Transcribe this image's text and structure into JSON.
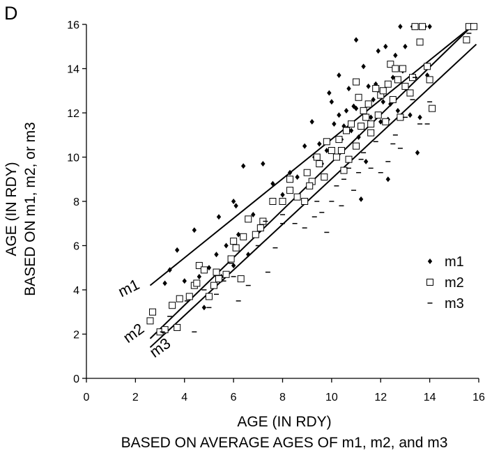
{
  "panel_label": "D",
  "chart_data": {
    "type": "scatter",
    "title": "",
    "xlabel": [
      "AGE (IN RDY)",
      "BASED ON AVERAGE AGES OF m1, m2, and m3"
    ],
    "ylabel": [
      "AGE (IN RDY)",
      "BASED ON m1, m2, or m3"
    ],
    "xlim": [
      0,
      16
    ],
    "ylim": [
      0,
      16
    ],
    "xticks": [
      0,
      2,
      4,
      6,
      8,
      10,
      12,
      14,
      16
    ],
    "yticks": [
      0,
      2,
      4,
      6,
      8,
      10,
      12,
      14,
      16
    ],
    "grid": false,
    "legend_position": "right",
    "series": [
      {
        "name": "m1",
        "marker": "diamond-filled",
        "points": [
          [
            3.4,
            4.9
          ],
          [
            3.2,
            4.3
          ],
          [
            3.7,
            5.8
          ],
          [
            4.0,
            4.4
          ],
          [
            4.4,
            6.7
          ],
          [
            4.6,
            4.6
          ],
          [
            4.8,
            3.2
          ],
          [
            5.0,
            5.0
          ],
          [
            5.3,
            5.6
          ],
          [
            5.4,
            7.3
          ],
          [
            5.5,
            4.6
          ],
          [
            5.7,
            6.0
          ],
          [
            6.0,
            8.0
          ],
          [
            6.1,
            7.8
          ],
          [
            6.2,
            6.5
          ],
          [
            6.4,
            9.6
          ],
          [
            6.0,
            5.1
          ],
          [
            6.6,
            5.6
          ],
          [
            6.8,
            7.4
          ],
          [
            7.2,
            9.7
          ],
          [
            7.6,
            8.8
          ],
          [
            8.0,
            8.3
          ],
          [
            8.3,
            9.3
          ],
          [
            8.6,
            9.1
          ],
          [
            8.9,
            10.5
          ],
          [
            9.2,
            11.6
          ],
          [
            9.3,
            10.0
          ],
          [
            9.5,
            10.6
          ],
          [
            9.6,
            9.7
          ],
          [
            9.8,
            10.3
          ],
          [
            9.9,
            12.9
          ],
          [
            10.0,
            12.5
          ],
          [
            10.1,
            11.5
          ],
          [
            10.3,
            13.7
          ],
          [
            10.4,
            10.8
          ],
          [
            10.5,
            11.4
          ],
          [
            10.6,
            12.1
          ],
          [
            10.8,
            11.2
          ],
          [
            10.9,
            12.3
          ],
          [
            11.0,
            12.2
          ],
          [
            11.1,
            10.9
          ],
          [
            11.2,
            8.1
          ],
          [
            11.3,
            14.1
          ],
          [
            11.5,
            13.2
          ],
          [
            11.6,
            11.8
          ],
          [
            11.7,
            12.6
          ],
          [
            11.8,
            13.3
          ],
          [
            11.9,
            14.8
          ],
          [
            12.0,
            11.6
          ],
          [
            12.1,
            12.5
          ],
          [
            12.2,
            15.0
          ],
          [
            12.4,
            12.4
          ],
          [
            12.5,
            13.6
          ],
          [
            12.6,
            14.6
          ],
          [
            12.8,
            15.9
          ],
          [
            12.9,
            13.9
          ],
          [
            13.0,
            15.0
          ],
          [
            13.2,
            11.9
          ],
          [
            13.4,
            13.6
          ],
          [
            13.5,
            10.2
          ],
          [
            13.6,
            11.8
          ],
          [
            13.8,
            15.9
          ],
          [
            14.0,
            15.9
          ],
          [
            13.9,
            13.7
          ],
          [
            12.3,
            9.0
          ],
          [
            11.4,
            9.8
          ],
          [
            10.7,
            13.1
          ],
          [
            11.0,
            15.3
          ],
          [
            12.3,
            11.7
          ],
          [
            13.3,
            15.9
          ],
          [
            10.3,
            11.9
          ],
          [
            12.7,
            12.1
          ]
        ]
      },
      {
        "name": "m2",
        "marker": "square-open",
        "points": [
          [
            2.7,
            3.0
          ],
          [
            2.6,
            2.6
          ],
          [
            3.0,
            2.1
          ],
          [
            3.2,
            2.2
          ],
          [
            3.5,
            3.3
          ],
          [
            3.7,
            2.3
          ],
          [
            3.8,
            3.6
          ],
          [
            4.2,
            3.7
          ],
          [
            4.4,
            4.2
          ],
          [
            4.6,
            5.1
          ],
          [
            4.8,
            4.9
          ],
          [
            5.0,
            3.7
          ],
          [
            5.2,
            4.2
          ],
          [
            5.4,
            4.5
          ],
          [
            5.7,
            4.7
          ],
          [
            5.9,
            5.4
          ],
          [
            6.0,
            6.2
          ],
          [
            6.1,
            5.9
          ],
          [
            6.3,
            4.5
          ],
          [
            6.4,
            6.4
          ],
          [
            6.6,
            7.2
          ],
          [
            6.9,
            6.5
          ],
          [
            7.2,
            7.1
          ],
          [
            7.6,
            8.0
          ],
          [
            8.0,
            8.0
          ],
          [
            8.3,
            8.5
          ],
          [
            8.6,
            8.2
          ],
          [
            8.9,
            8.0
          ],
          [
            9.0,
            9.3
          ],
          [
            9.2,
            8.9
          ],
          [
            9.4,
            10.0
          ],
          [
            9.5,
            9.7
          ],
          [
            9.7,
            9.1
          ],
          [
            9.8,
            10.7
          ],
          [
            10.0,
            10.3
          ],
          [
            10.2,
            10.0
          ],
          [
            10.3,
            10.8
          ],
          [
            10.4,
            10.3
          ],
          [
            10.6,
            11.2
          ],
          [
            10.7,
            9.9
          ],
          [
            10.8,
            11.5
          ],
          [
            11.0,
            10.5
          ],
          [
            11.1,
            12.7
          ],
          [
            11.2,
            11.4
          ],
          [
            11.3,
            12.1
          ],
          [
            11.4,
            11.8
          ],
          [
            11.5,
            12.4
          ],
          [
            11.6,
            11.1
          ],
          [
            11.8,
            13.1
          ],
          [
            11.9,
            11.9
          ],
          [
            12.0,
            12.8
          ],
          [
            12.2,
            11.6
          ],
          [
            12.3,
            13.3
          ],
          [
            12.4,
            14.2
          ],
          [
            12.5,
            12.6
          ],
          [
            12.7,
            13.5
          ],
          [
            12.8,
            11.8
          ],
          [
            12.9,
            14.0
          ],
          [
            13.0,
            13.2
          ],
          [
            13.2,
            12.9
          ],
          [
            13.4,
            15.9
          ],
          [
            13.6,
            15.2
          ],
          [
            13.7,
            15.9
          ],
          [
            13.9,
            14.1
          ],
          [
            14.0,
            13.5
          ],
          [
            14.1,
            12.2
          ],
          [
            15.5,
            15.3
          ],
          [
            15.6,
            15.9
          ],
          [
            15.8,
            15.9
          ],
          [
            10.5,
            9.4
          ],
          [
            11.0,
            13.4
          ],
          [
            12.1,
            13.0
          ],
          [
            9.1,
            8.7
          ],
          [
            8.3,
            9.0
          ],
          [
            7.1,
            6.8
          ],
          [
            5.3,
            4.8
          ],
          [
            4.5,
            4.3
          ],
          [
            13.3,
            13.6
          ],
          [
            11.6,
            11.5
          ],
          [
            12.6,
            14.0
          ]
        ]
      },
      {
        "name": "m3",
        "marker": "dash",
        "points": [
          [
            3.1,
            2.1
          ],
          [
            3.4,
            2.8
          ],
          [
            4.1,
            3.5
          ],
          [
            4.4,
            2.1
          ],
          [
            4.8,
            4.0
          ],
          [
            5.3,
            3.8
          ],
          [
            5.6,
            4.4
          ],
          [
            5.9,
            5.2
          ],
          [
            6.2,
            3.5
          ],
          [
            6.6,
            4.2
          ],
          [
            7.0,
            6.0
          ],
          [
            7.4,
            4.8
          ],
          [
            7.7,
            5.9
          ],
          [
            8.0,
            7.0
          ],
          [
            8.5,
            7.0
          ],
          [
            8.9,
            6.8
          ],
          [
            9.3,
            7.3
          ],
          [
            9.6,
            7.5
          ],
          [
            9.8,
            6.6
          ],
          [
            10.0,
            8.0
          ],
          [
            10.2,
            8.7
          ],
          [
            10.5,
            9.0
          ],
          [
            10.7,
            9.5
          ],
          [
            10.9,
            8.5
          ],
          [
            11.1,
            9.3
          ],
          [
            11.3,
            10.2
          ],
          [
            11.6,
            9.5
          ],
          [
            11.8,
            10.7
          ],
          [
            12.0,
            9.3
          ],
          [
            12.3,
            9.8
          ],
          [
            12.5,
            10.6
          ],
          [
            12.8,
            10.4
          ],
          [
            13.0,
            11.8
          ],
          [
            13.3,
            12.6
          ],
          [
            13.6,
            11.5
          ],
          [
            13.9,
            11.5
          ],
          [
            14.0,
            12.5
          ],
          [
            10.4,
            7.8
          ],
          [
            9.4,
            8.0
          ],
          [
            7.3,
            7.1
          ],
          [
            8.0,
            7.4
          ],
          [
            5.0,
            3.2
          ],
          [
            6.0,
            4.6
          ],
          [
            12.6,
            11.0
          ],
          [
            11.2,
            9.9
          ],
          [
            13.4,
            13.6
          ],
          [
            15.6,
            15.6
          ]
        ]
      }
    ],
    "regression_lines": [
      {
        "name": "m1",
        "from": [
          2.6,
          4.2
        ],
        "to": [
          15.7,
          15.9
        ]
      },
      {
        "name": "m2",
        "from": [
          2.6,
          1.8
        ],
        "to": [
          15.7,
          15.9
        ]
      },
      {
        "name": "m3",
        "from": [
          2.6,
          1.4
        ],
        "to": [
          15.9,
          15.1
        ]
      }
    ]
  }
}
